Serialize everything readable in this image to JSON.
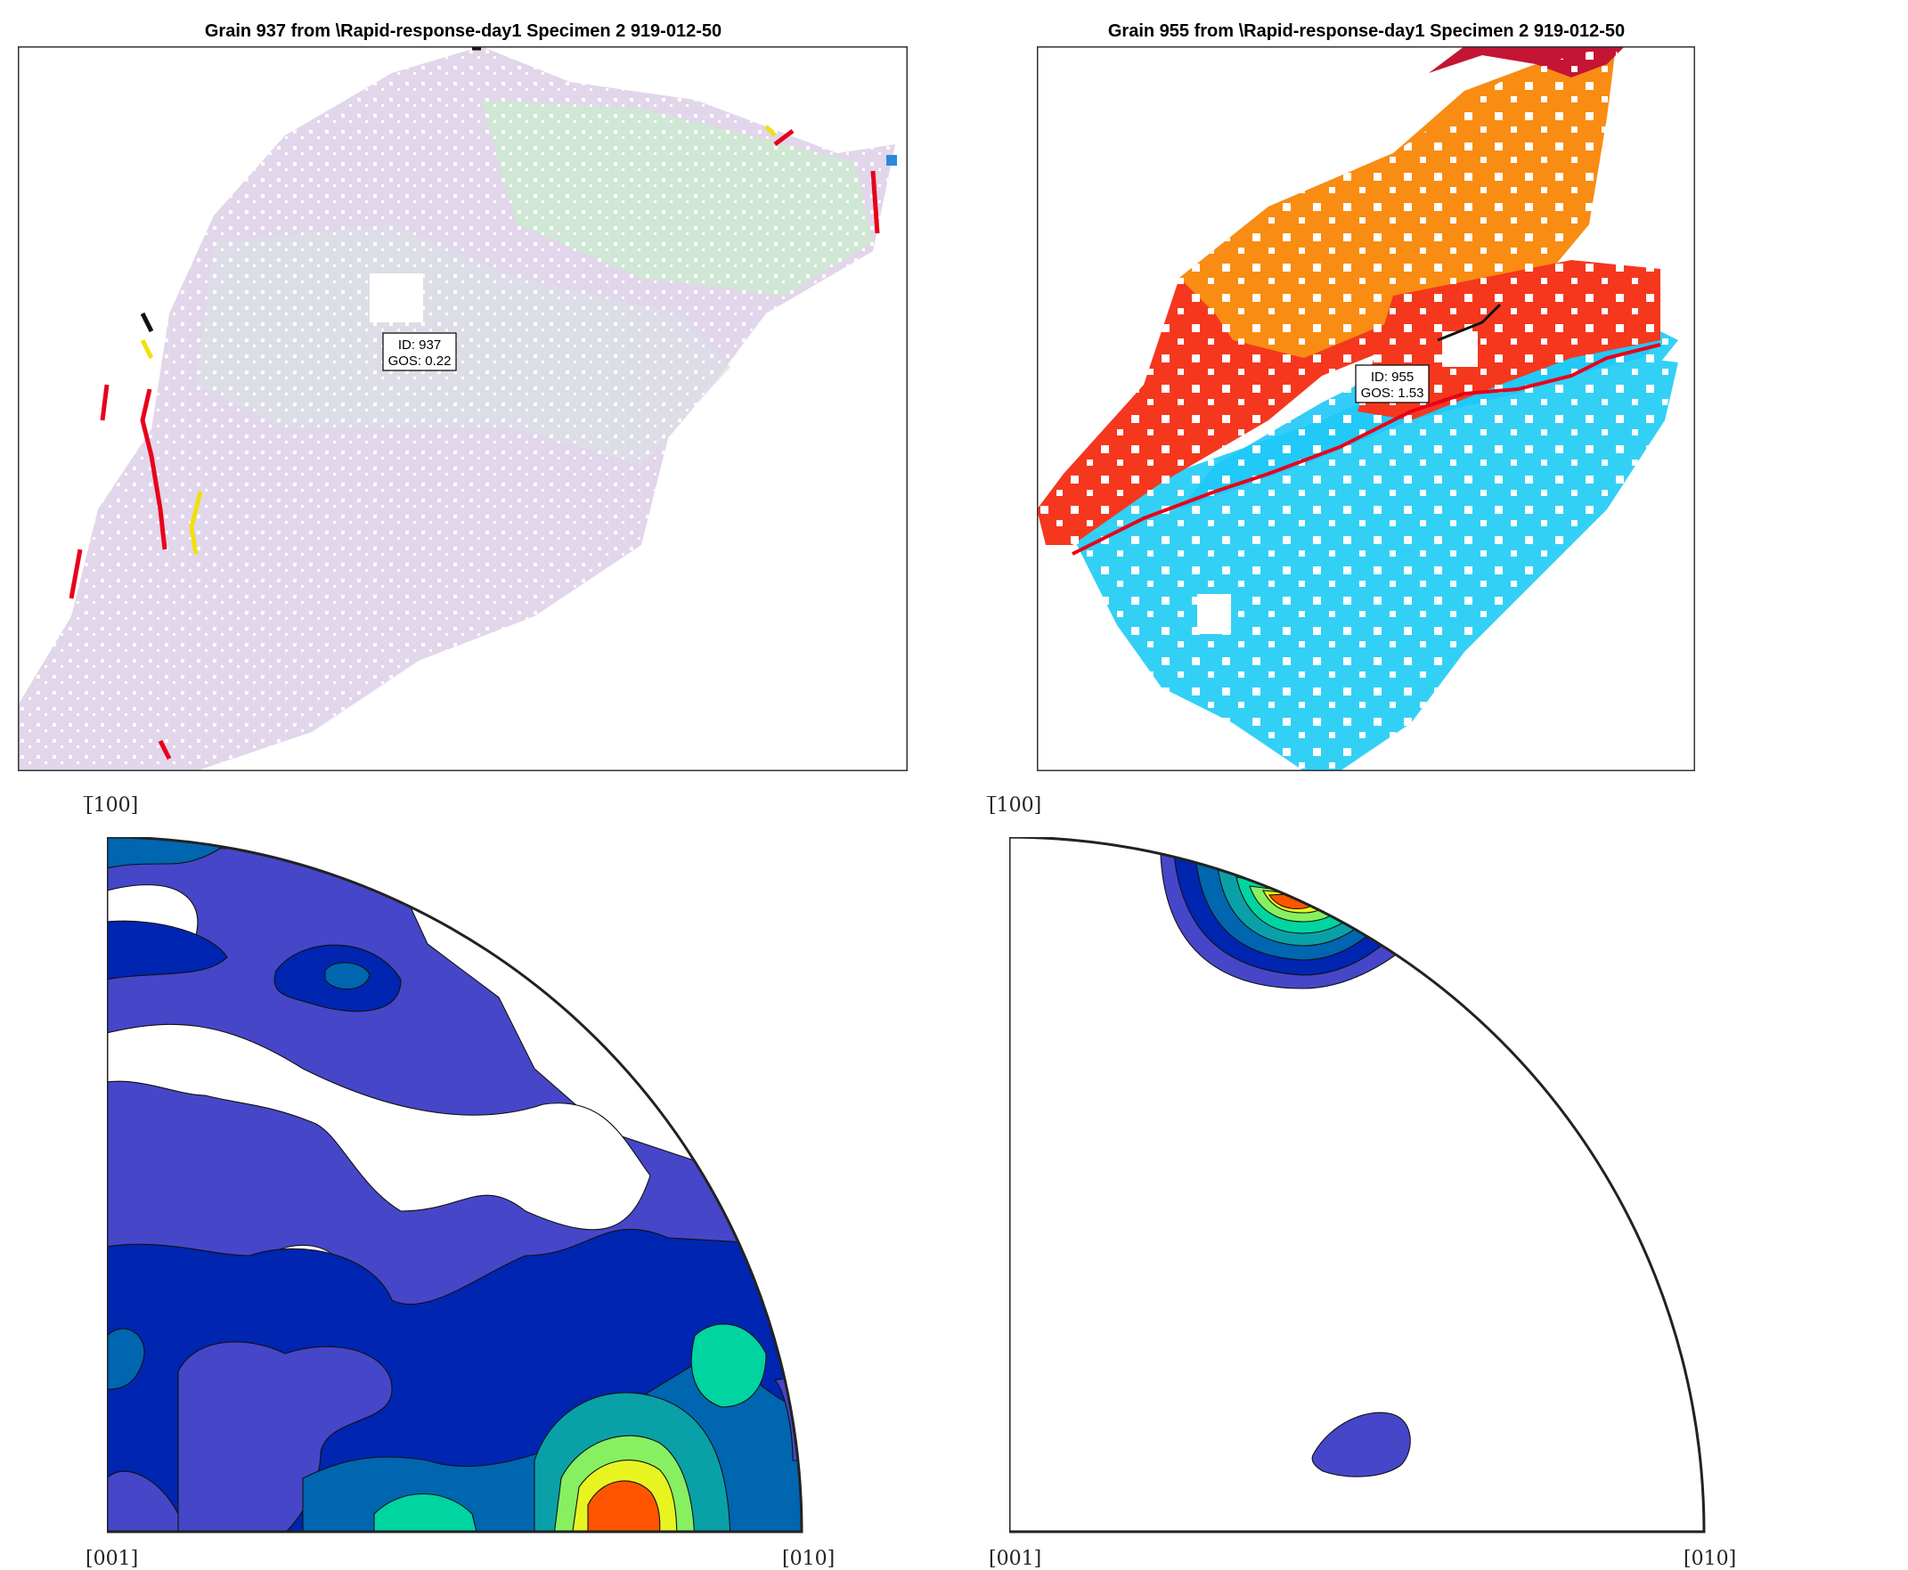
{
  "maps": [
    {
      "title": "Grain 937 from \\Rapid-response-day1 Specimen 2 919-012-50",
      "annotation": {
        "id_text": "ID: 937",
        "gos_text": "GOS: 0.22"
      }
    },
    {
      "title": "Grain 955 from \\Rapid-response-day1 Specimen 2 919-012-50",
      "annotation": {
        "id_text": "ID: 955",
        "gos_text": "GOS: 1.53"
      }
    }
  ],
  "pole_figures": [
    {
      "label_top": "[̅100]",
      "label_origin": "[001]",
      "label_end": "[010]"
    },
    {
      "label_top": "[̅100]",
      "label_origin": "[001]",
      "label_end": "[010]"
    }
  ],
  "colors": {
    "grain937_fill": "#e2d6ea",
    "grain937_green": "#c9eccd",
    "grain955_red": "#f5371e",
    "grain955_orange": "#f98c12",
    "grain955_blue": "#33d0f5",
    "contour_levels": [
      "#4646c8",
      "#0025b0",
      "#0066b0",
      "#0aa0a8",
      "#00d4a0",
      "#86f060",
      "#e8f420",
      "#ff5500"
    ]
  }
}
